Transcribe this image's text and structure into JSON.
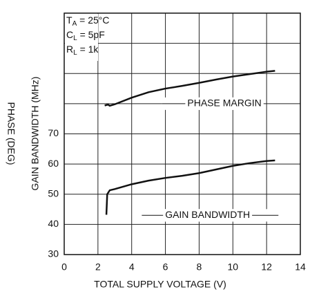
{
  "chart_data": {
    "type": "line",
    "xlabel": "TOTAL SUPPLY VOLTAGE (V)",
    "ylabel": "GAIN BANDWIDTH (MHz)",
    "ylabel2": "PHASE (DEG)",
    "xlim": [
      0,
      14
    ],
    "xticks": [
      0,
      2,
      4,
      6,
      8,
      10,
      12,
      14
    ],
    "ylim": [
      30,
      110
    ],
    "yticks": [
      30,
      40,
      50,
      60,
      70
    ],
    "ygrid": [
      30,
      40,
      50,
      60,
      70,
      80,
      90,
      100,
      110
    ],
    "grid": true,
    "conditions": [
      {
        "symbol": "T",
        "sub": "A",
        "rest": " = 25°C"
      },
      {
        "symbol": "C",
        "sub": "L",
        "rest": " = 5pF"
      },
      {
        "symbol": "R",
        "sub": "L",
        "rest": " = 1k"
      }
    ],
    "series": [
      {
        "name": "PHASE MARGIN",
        "color": "#111111",
        "x": [
          2.4,
          2.6,
          2.7,
          3,
          4,
          5,
          6,
          7,
          8,
          9,
          10,
          11,
          12,
          12.5
        ],
        "values": [
          79.4,
          79.7,
          79.3,
          79.8,
          82,
          83.8,
          85,
          85.9,
          86.9,
          88,
          89,
          89.8,
          90.6,
          90.9
        ]
      },
      {
        "name": "GAIN BANDWIDTH",
        "color": "#111111",
        "x": [
          2.5,
          2.55,
          2.7,
          3,
          4,
          5,
          6,
          7,
          8,
          9,
          10,
          11,
          12,
          12.5
        ],
        "values": [
          43.2,
          50,
          51.3,
          51.7,
          53.3,
          54.5,
          55.4,
          56.1,
          57,
          58.2,
          59.4,
          60.3,
          61,
          61.2
        ]
      }
    ]
  }
}
